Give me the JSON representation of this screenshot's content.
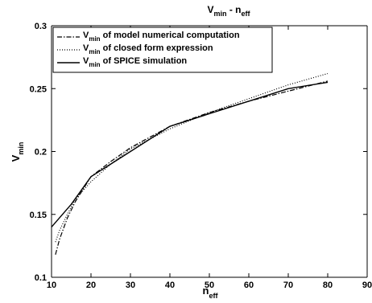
{
  "chart_data": {
    "type": "line",
    "title": {
      "main": "V",
      "main_sub": "min",
      "sep": " - ",
      "var": "n",
      "var_sub": "eff"
    },
    "xlabel": {
      "main": "n",
      "sub": "eff"
    },
    "ylabel": {
      "main": "V",
      "sub": "min"
    },
    "xlim": [
      10,
      90
    ],
    "ylim": [
      0.1,
      0.3
    ],
    "xticks": [
      10,
      20,
      30,
      40,
      50,
      60,
      70,
      80,
      90
    ],
    "xtick_labels": [
      "10",
      "20",
      "30",
      "40",
      "50",
      "60",
      "70",
      "80",
      "90"
    ],
    "yticks": [
      0.1,
      0.15,
      0.2,
      0.25,
      0.3
    ],
    "ytick_labels": [
      "0.1",
      "0.15",
      "0.2",
      "0.25",
      "0.3"
    ],
    "grid": false,
    "legend_position": "top-left",
    "series": [
      {
        "name": {
          "v": "V",
          "sub": "min",
          "rest": " of model numerical computation"
        },
        "style": "dashdot",
        "x": [
          11,
          12,
          14,
          16,
          20,
          25,
          30,
          40,
          50,
          60,
          70,
          80
        ],
        "y": [
          0.118,
          0.13,
          0.147,
          0.16,
          0.18,
          0.192,
          0.203,
          0.22,
          0.231,
          0.24,
          0.248,
          0.256
        ]
      },
      {
        "name": {
          "v": "V",
          "sub": "min",
          "rest": " of closed form expression"
        },
        "style": "dotted",
        "x": [
          11,
          12,
          14,
          16,
          20,
          25,
          30,
          40,
          50,
          60,
          70,
          80
        ],
        "y": [
          0.128,
          0.137,
          0.15,
          0.162,
          0.176,
          0.19,
          0.202,
          0.218,
          0.231,
          0.242,
          0.253,
          0.262
        ]
      },
      {
        "name": {
          "v": "V",
          "sub": "min",
          "rest": " of SPICE simulation"
        },
        "style": "solid",
        "x": [
          10,
          15,
          20,
          30,
          40,
          50,
          60,
          70,
          80
        ],
        "y": [
          0.14,
          0.158,
          0.18,
          0.2,
          0.22,
          0.23,
          0.24,
          0.25,
          0.255
        ]
      }
    ]
  }
}
